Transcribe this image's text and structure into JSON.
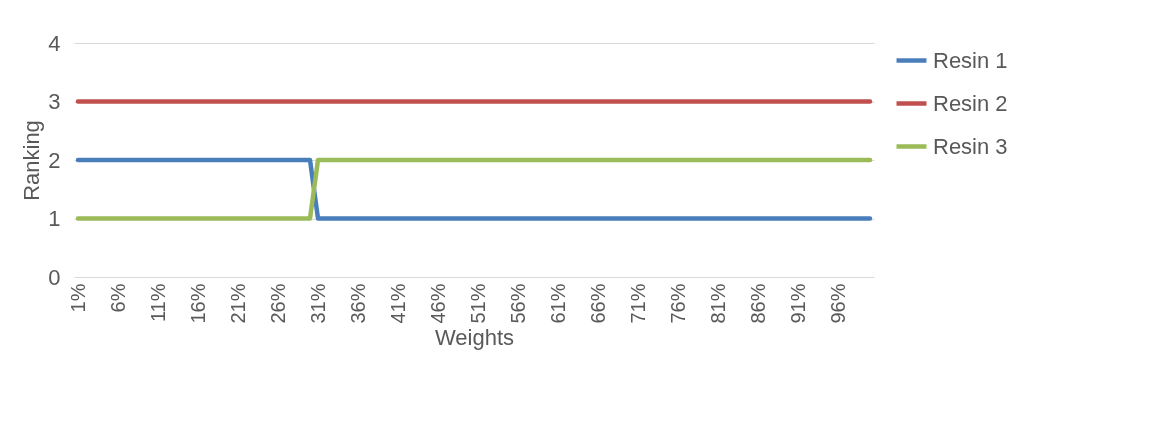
{
  "chart_data": {
    "type": "line",
    "xlabel": "Weights",
    "ylabel": "Ranking",
    "categories": [
      "1%",
      null,
      null,
      null,
      null,
      "6%",
      null,
      null,
      null,
      null,
      "11%",
      null,
      null,
      null,
      null,
      "16%",
      null,
      null,
      null,
      null,
      "21%",
      null,
      null,
      null,
      null,
      "26%",
      null,
      null,
      null,
      null,
      "31%",
      null,
      null,
      null,
      null,
      "36%",
      null,
      null,
      null,
      null,
      "41%",
      null,
      null,
      null,
      null,
      "46%",
      null,
      null,
      null,
      null,
      "51%",
      null,
      null,
      null,
      null,
      "56%",
      null,
      null,
      null,
      null,
      "61%",
      null,
      null,
      null,
      null,
      "66%",
      null,
      null,
      null,
      null,
      "71%",
      null,
      null,
      null,
      null,
      "76%",
      null,
      null,
      null,
      null,
      "81%",
      null,
      null,
      null,
      null,
      "86%",
      null,
      null,
      null,
      null,
      "91%",
      null,
      null,
      null,
      null,
      "96%",
      null,
      null,
      null,
      null
    ],
    "series": [
      {
        "name": "Resin 1",
        "color": "#4a7ebb",
        "values": [
          2,
          2,
          2,
          2,
          2,
          2,
          2,
          2,
          2,
          2,
          2,
          2,
          2,
          2,
          2,
          2,
          2,
          2,
          2,
          2,
          2,
          2,
          2,
          2,
          2,
          2,
          2,
          2,
          2,
          2,
          1,
          1,
          1,
          1,
          1,
          1,
          1,
          1,
          1,
          1,
          1,
          1,
          1,
          1,
          1,
          1,
          1,
          1,
          1,
          1,
          1,
          1,
          1,
          1,
          1,
          1,
          1,
          1,
          1,
          1,
          1,
          1,
          1,
          1,
          1,
          1,
          1,
          1,
          1,
          1,
          1,
          1,
          1,
          1,
          1,
          1,
          1,
          1,
          1,
          1,
          1,
          1,
          1,
          1,
          1,
          1,
          1,
          1,
          1,
          1,
          1,
          1,
          1,
          1,
          1,
          1,
          1,
          1,
          1,
          1
        ]
      },
      {
        "name": "Resin 2",
        "color": "#c0504d",
        "values": [
          3,
          3,
          3,
          3,
          3,
          3,
          3,
          3,
          3,
          3,
          3,
          3,
          3,
          3,
          3,
          3,
          3,
          3,
          3,
          3,
          3,
          3,
          3,
          3,
          3,
          3,
          3,
          3,
          3,
          3,
          3,
          3,
          3,
          3,
          3,
          3,
          3,
          3,
          3,
          3,
          3,
          3,
          3,
          3,
          3,
          3,
          3,
          3,
          3,
          3,
          3,
          3,
          3,
          3,
          3,
          3,
          3,
          3,
          3,
          3,
          3,
          3,
          3,
          3,
          3,
          3,
          3,
          3,
          3,
          3,
          3,
          3,
          3,
          3,
          3,
          3,
          3,
          3,
          3,
          3,
          3,
          3,
          3,
          3,
          3,
          3,
          3,
          3,
          3,
          3,
          3,
          3,
          3,
          3,
          3,
          3,
          3,
          3,
          3,
          3
        ]
      },
      {
        "name": "Resin 3",
        "color": "#9bbb59",
        "values": [
          1,
          1,
          1,
          1,
          1,
          1,
          1,
          1,
          1,
          1,
          1,
          1,
          1,
          1,
          1,
          1,
          1,
          1,
          1,
          1,
          1,
          1,
          1,
          1,
          1,
          1,
          1,
          1,
          1,
          1,
          2,
          2,
          2,
          2,
          2,
          2,
          2,
          2,
          2,
          2,
          2,
          2,
          2,
          2,
          2,
          2,
          2,
          2,
          2,
          2,
          2,
          2,
          2,
          2,
          2,
          2,
          2,
          2,
          2,
          2,
          2,
          2,
          2,
          2,
          2,
          2,
          2,
          2,
          2,
          2,
          2,
          2,
          2,
          2,
          2,
          2,
          2,
          2,
          2,
          2,
          2,
          2,
          2,
          2,
          2,
          2,
          2,
          2,
          2,
          2,
          2,
          2,
          2,
          2,
          2,
          2,
          2,
          2,
          2,
          2
        ]
      }
    ],
    "ylim": [
      0,
      4
    ],
    "yticks": [
      0,
      1,
      2,
      3,
      4
    ],
    "grid": "y",
    "legend": "right"
  }
}
